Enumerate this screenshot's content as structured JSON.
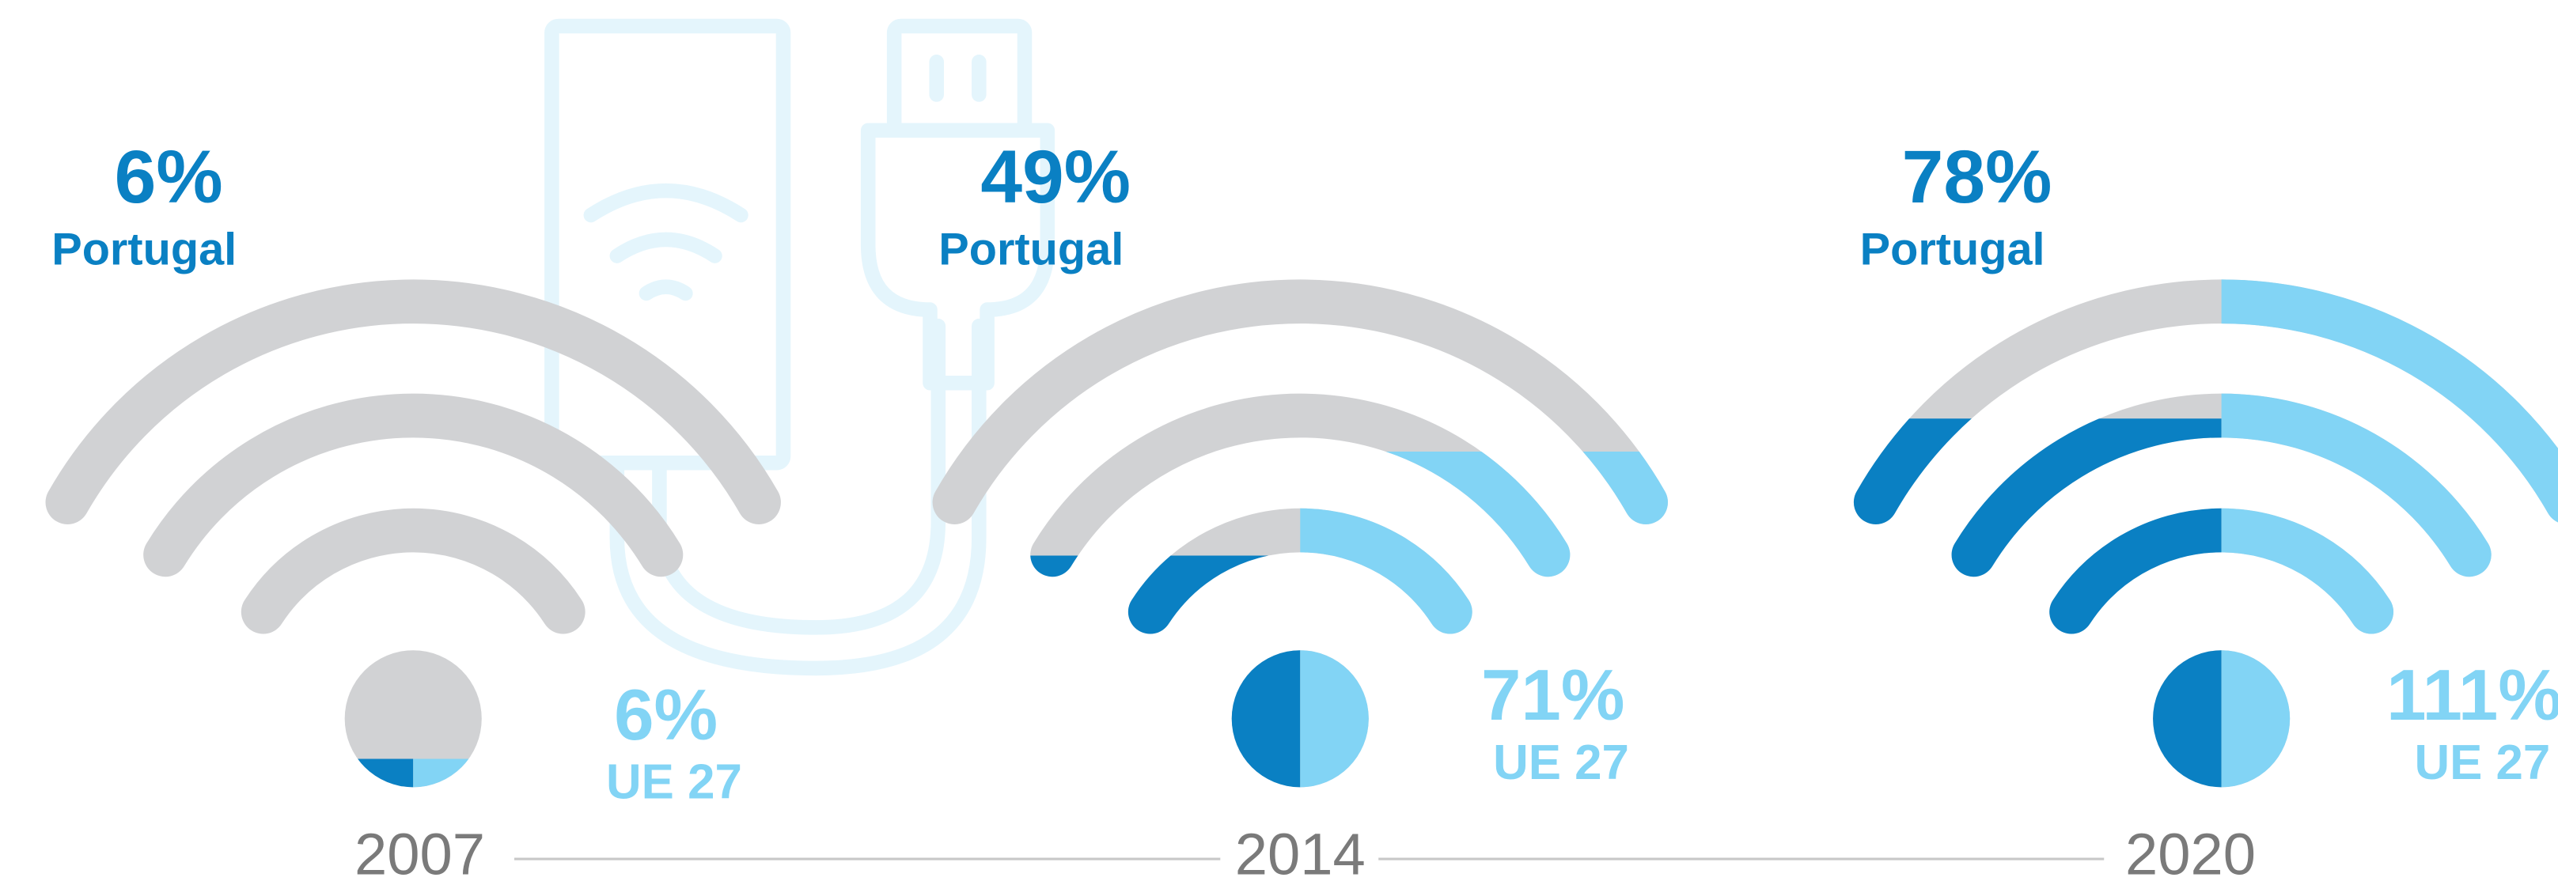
{
  "chart_data": {
    "type": "wifi",
    "categories": [
      "2007",
      "2014",
      "2020"
    ],
    "series": [
      {
        "name": "Portugal",
        "color": "#0a80c3",
        "values": [
          6,
          49,
          78
        ],
        "value_labels": [
          "6%",
          "49%",
          "78%"
        ]
      },
      {
        "name": "UE 27",
        "color": "#82d4f5",
        "values": [
          6,
          71,
          111
        ],
        "value_labels": [
          "6%",
          "71%",
          "111%"
        ]
      }
    ],
    "ylim": [
      0,
      100
    ],
    "base_color": "#d1d2d4"
  }
}
